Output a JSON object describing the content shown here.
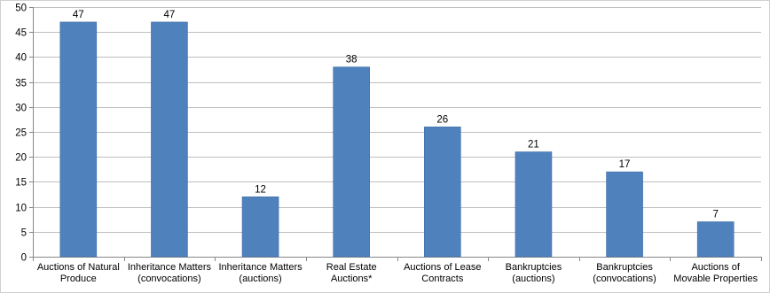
{
  "chart_data": {
    "type": "bar",
    "categories": [
      [
        "Auctions of Natural",
        "Produce"
      ],
      [
        "Inheritance Matters",
        "(convocations)"
      ],
      [
        "Inheritance Matters",
        "(auctions)"
      ],
      [
        "Real Estate",
        "Auctions*"
      ],
      [
        "Auctions of Lease",
        "Contracts"
      ],
      [
        "Bankruptcies",
        "(auctions)"
      ],
      [
        "Bankruptcies",
        "(convocations)"
      ],
      [
        "Auctions of",
        "Movable Properties"
      ]
    ],
    "values": [
      47,
      47,
      12,
      38,
      26,
      21,
      17,
      7
    ],
    "ylim": [
      0,
      50
    ],
    "yticks": [
      0,
      5,
      10,
      15,
      20,
      25,
      30,
      35,
      40,
      45,
      50
    ],
    "grid": true,
    "legend": "none",
    "data_labels": true,
    "colors": {
      "bar": "#4f81bd",
      "bar_edge": "#3f6fa8",
      "grid": "#bfbfbf",
      "axis": "#868686"
    }
  }
}
